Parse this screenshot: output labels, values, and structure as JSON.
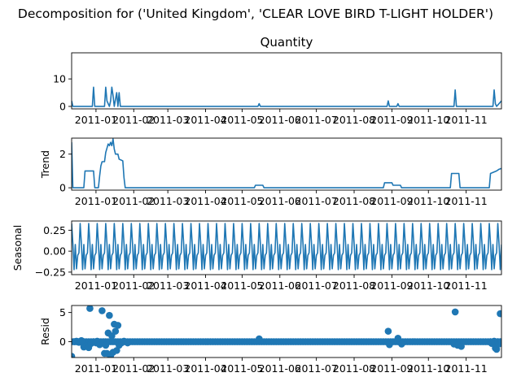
{
  "chart_data": {
    "type": "line",
    "title": "Decomposition for ('United Kingdom', 'CLEAR LOVE BIRD T-LIGHT HOLDER')",
    "x_axis": {
      "kind": "date",
      "range": [
        "2010-12-12",
        "2011-11-30"
      ],
      "tick_labels": [
        "2011-01",
        "2011-02",
        "2011-03",
        "2011-04",
        "2011-05",
        "2011-06",
        "2011-07",
        "2011-08",
        "2011-09",
        "2011-10",
        "2011-11"
      ],
      "tick_dates": [
        "2011-01-01",
        "2011-02-01",
        "2011-03-01",
        "2011-04-01",
        "2011-05-01",
        "2011-06-01",
        "2011-07-01",
        "2011-08-01",
        "2011-09-01",
        "2011-10-01",
        "2011-11-01"
      ]
    },
    "panels": [
      {
        "id": "observed",
        "title": "Quantity",
        "ylabel": "",
        "plot_type": "line",
        "ylim": [
          -0.9,
          19.5
        ],
        "yticks": [
          0,
          10
        ],
        "color": "#1f77b4",
        "points": [
          [
            "2010-12-12",
            2.0
          ],
          [
            "2010-12-13",
            0
          ],
          [
            "2010-12-29",
            0
          ],
          [
            "2010-12-30",
            7.0
          ],
          [
            "2010-12-31",
            0
          ],
          [
            "2011-01-08",
            0
          ],
          [
            "2011-01-09",
            7.0
          ],
          [
            "2011-01-10",
            2.0
          ],
          [
            "2011-01-12",
            0
          ],
          [
            "2011-01-13",
            2.0
          ],
          [
            "2011-01-14",
            7.0
          ],
          [
            "2011-01-15",
            4.0
          ],
          [
            "2011-01-16",
            0
          ],
          [
            "2011-01-18",
            5.0
          ],
          [
            "2011-01-19",
            0
          ],
          [
            "2011-01-20",
            5.0
          ],
          [
            "2011-01-21",
            0
          ],
          [
            "2011-05-14",
            0
          ],
          [
            "2011-05-15",
            1.0
          ],
          [
            "2011-05-16",
            0
          ],
          [
            "2011-08-28",
            0
          ],
          [
            "2011-08-29",
            2.0
          ],
          [
            "2011-08-30",
            0
          ],
          [
            "2011-09-05",
            0
          ],
          [
            "2011-09-06",
            1.0
          ],
          [
            "2011-09-07",
            0
          ],
          [
            "2011-10-22",
            0
          ],
          [
            "2011-10-23",
            6.0
          ],
          [
            "2011-10-24",
            0
          ],
          [
            "2011-11-23",
            0
          ],
          [
            "2011-11-24",
            6.0
          ],
          [
            "2011-11-25",
            1.0
          ],
          [
            "2011-11-26",
            0
          ],
          [
            "2011-11-30",
            2.0
          ]
        ]
      },
      {
        "id": "trend",
        "title": "",
        "ylabel": "Trend",
        "plot_type": "line",
        "ylim": [
          -0.14,
          2.95
        ],
        "yticks": [
          0,
          2
        ],
        "color": "#1f77b4",
        "points": [
          [
            "2010-12-12",
            2.7
          ],
          [
            "2010-12-13",
            0
          ],
          [
            "2010-12-22",
            0
          ],
          [
            "2010-12-23",
            1.0
          ],
          [
            "2010-12-30",
            1.0
          ],
          [
            "2010-12-31",
            0
          ],
          [
            "2011-01-03",
            0
          ],
          [
            "2011-01-04",
            0.7
          ],
          [
            "2011-01-05",
            1.3
          ],
          [
            "2011-01-06",
            1.55
          ],
          [
            "2011-01-08",
            1.55
          ],
          [
            "2011-01-09",
            2.1
          ],
          [
            "2011-01-10",
            2.35
          ],
          [
            "2011-01-11",
            2.6
          ],
          [
            "2011-01-12",
            2.5
          ],
          [
            "2011-01-13",
            2.7
          ],
          [
            "2011-01-14",
            2.5
          ],
          [
            "2011-01-15",
            2.9
          ],
          [
            "2011-01-16",
            2.3
          ],
          [
            "2011-01-17",
            2.0
          ],
          [
            "2011-01-19",
            2.0
          ],
          [
            "2011-01-20",
            1.7
          ],
          [
            "2011-01-23",
            1.6
          ],
          [
            "2011-01-24",
            0.6
          ],
          [
            "2011-01-25",
            0
          ],
          [
            "2011-05-11",
            0
          ],
          [
            "2011-05-12",
            0.15
          ],
          [
            "2011-05-18",
            0.15
          ],
          [
            "2011-05-19",
            0
          ],
          [
            "2011-08-25",
            0
          ],
          [
            "2011-08-26",
            0.3
          ],
          [
            "2011-09-01",
            0.3
          ],
          [
            "2011-09-02",
            0.15
          ],
          [
            "2011-09-08",
            0.15
          ],
          [
            "2011-09-09",
            0
          ],
          [
            "2011-10-19",
            0
          ],
          [
            "2011-10-20",
            0.85
          ],
          [
            "2011-10-26",
            0.85
          ],
          [
            "2011-10-27",
            0
          ],
          [
            "2011-11-20",
            0
          ],
          [
            "2011-11-21",
            0.85
          ],
          [
            "2011-11-26",
            1.0
          ],
          [
            "2011-11-28",
            1.1
          ],
          [
            "2011-11-30",
            1.15
          ]
        ]
      },
      {
        "id": "seasonal",
        "title": "",
        "ylabel": "Seasonal",
        "plot_type": "line",
        "ylim": [
          -0.28,
          0.36
        ],
        "yticks": [
          0.25,
          0.0,
          -0.25
        ],
        "ytick_labels": [
          "0.25",
          "0.00",
          "−0.25"
        ],
        "color": "#1f77b4",
        "period_days": 7,
        "start": "2010-12-12",
        "end": "2011-11-30",
        "cycle": [
          0.33,
          0.09,
          -0.22,
          0.08,
          -0.21,
          -0.05,
          -0.02
        ]
      },
      {
        "id": "resid",
        "title": "",
        "ylabel": "Resid",
        "plot_type": "scatter",
        "ylim": [
          -2.7,
          6.2
        ],
        "yticks": [
          0,
          5
        ],
        "color": "#1f77b4",
        "baseline": 0,
        "points": [
          [
            "2010-12-12",
            -2.5
          ],
          [
            "2010-12-14",
            0.0
          ],
          [
            "2010-12-16",
            0.1
          ],
          [
            "2010-12-18",
            -0.1
          ],
          [
            "2010-12-20",
            0.2
          ],
          [
            "2010-12-22",
            -0.9
          ],
          [
            "2010-12-24",
            -0.7
          ],
          [
            "2010-12-26",
            -1.0
          ],
          [
            "2010-12-27",
            5.7
          ],
          [
            "2010-12-28",
            -0.3
          ],
          [
            "2010-12-30",
            0.0
          ],
          [
            "2011-01-01",
            -0.2
          ],
          [
            "2011-01-02",
            0.1
          ],
          [
            "2011-01-04",
            -0.5
          ],
          [
            "2011-01-06",
            5.3
          ],
          [
            "2011-01-07",
            -0.1
          ],
          [
            "2011-01-08",
            -2.0
          ],
          [
            "2011-01-09",
            -0.6
          ],
          [
            "2011-01-10",
            -2.0
          ],
          [
            "2011-01-11",
            1.5
          ],
          [
            "2011-01-12",
            4.5
          ],
          [
            "2011-01-13",
            -2.4
          ],
          [
            "2011-01-14",
            1.0
          ],
          [
            "2011-01-15",
            -1.8
          ],
          [
            "2011-01-16",
            3.0
          ],
          [
            "2011-01-17",
            1.8
          ],
          [
            "2011-01-18",
            -1.5
          ],
          [
            "2011-01-19",
            2.8
          ],
          [
            "2011-01-20",
            -0.6
          ],
          [
            "2011-01-22",
            -0.2
          ],
          [
            "2011-01-24",
            0.1
          ],
          [
            "2011-01-27",
            -0.2
          ],
          [
            "2011-05-15",
            0.5
          ],
          [
            "2011-08-29",
            1.8
          ],
          [
            "2011-08-30",
            -0.5
          ],
          [
            "2011-09-06",
            0.6
          ],
          [
            "2011-09-09",
            -0.4
          ],
          [
            "2011-10-23",
            5.1
          ],
          [
            "2011-10-22",
            -0.4
          ],
          [
            "2011-10-25",
            -0.6
          ],
          [
            "2011-10-28",
            -0.8
          ],
          [
            "2011-11-21",
            0.0
          ],
          [
            "2011-11-22",
            -0.3
          ],
          [
            "2011-11-24",
            0.1
          ],
          [
            "2011-11-25",
            -1.1
          ],
          [
            "2011-11-26",
            -1.3
          ],
          [
            "2011-11-27",
            0.0
          ],
          [
            "2011-11-28",
            -0.4
          ],
          [
            "2011-11-29",
            4.8
          ],
          [
            "2011-11-30",
            0.0
          ]
        ],
        "background_zero_points": true
      }
    ]
  }
}
